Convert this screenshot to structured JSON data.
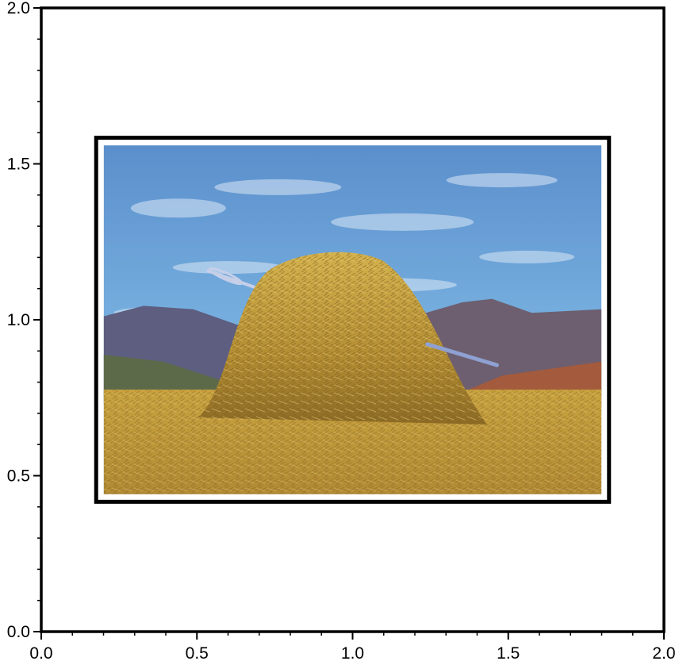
{
  "chart_data": {
    "type": "image",
    "title": "",
    "xlabel": "",
    "ylabel": "",
    "xlim": [
      0.0,
      2.0
    ],
    "ylim": [
      0.0,
      2.0
    ],
    "x_ticks": [
      {
        "value": 0.0,
        "label": "0.0"
      },
      {
        "value": 0.5,
        "label": "0.5"
      },
      {
        "value": 1.0,
        "label": "1.0"
      },
      {
        "value": 1.5,
        "label": "1.5"
      },
      {
        "value": 2.0,
        "label": "2.0"
      }
    ],
    "y_ticks": [
      {
        "value": 0.0,
        "label": "0.0"
      },
      {
        "value": 0.5,
        "label": "0.5"
      },
      {
        "value": 1.0,
        "label": "1.0"
      },
      {
        "value": 1.5,
        "label": "1.5"
      },
      {
        "value": 2.0,
        "label": "2.0"
      }
    ],
    "minor_tick_step": 0.1,
    "grid": false,
    "legend": "none",
    "embedded_image": {
      "subject": "haystack with a needle in a field",
      "x_range": [
        0.17,
        1.83
      ],
      "y_range": [
        0.41,
        1.59
      ],
      "frame": true,
      "frame_color": "#000000"
    },
    "colors": {
      "sky": "#6aa6da",
      "hay": "#c9a43f",
      "mountain": "#5e5f7e",
      "needle": "#9fb0d8",
      "axis": "#000000"
    }
  }
}
